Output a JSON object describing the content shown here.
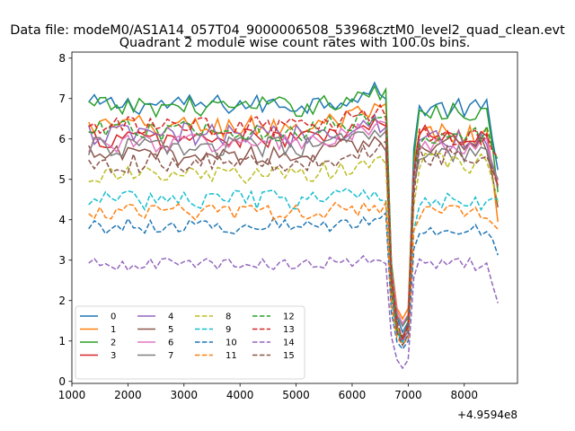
{
  "chart_data": {
    "type": "line",
    "suptitle": "Data file: modeM0/AS1A14_057T04_9000006508_53968cztM0_level2_quad_clean.evt",
    "title": "Quadrant 2 module wise count rates with 100.0s bins.",
    "xlabel": "",
    "ylabel": "",
    "x_offset_label": "+4.9594e8",
    "xlim": [
      1000,
      8950
    ],
    "ylim": [
      -0.05,
      8.15
    ],
    "xticks": [
      1000,
      2000,
      3000,
      4000,
      5000,
      6000,
      7000,
      8000
    ],
    "xtick_labels": [
      "1000",
      "2000",
      "3000",
      "4000",
      "5000",
      "6000",
      "7000",
      "8000"
    ],
    "yticks": [
      0,
      1,
      2,
      3,
      4,
      5,
      6,
      7,
      8
    ],
    "ytick_labels": [
      "0",
      "1",
      "2",
      "3",
      "4",
      "5",
      "6",
      "7",
      "8"
    ],
    "x_start": 1300,
    "x_step": 100,
    "dip_center": 6900,
    "legend": {
      "placement": "lower-left",
      "columns": 4
    },
    "series": [
      {
        "name": "0",
        "color": "#1f77b4",
        "style": "solid",
        "level": 6.85,
        "dip_min": 1.2,
        "late_level": 6.75,
        "late_end": 5.2,
        "noise": 0.25
      },
      {
        "name": "1",
        "color": "#ff7f0e",
        "style": "solid",
        "level": 6.3,
        "dip_min": 1.5,
        "late_level": 6.1,
        "late_end": 4.0,
        "noise": 0.3
      },
      {
        "name": "2",
        "color": "#2ca02c",
        "style": "solid",
        "level": 6.8,
        "dip_min": 1.3,
        "late_level": 6.7,
        "late_end": 4.8,
        "noise": 0.25
      },
      {
        "name": "3",
        "color": "#d62728",
        "style": "solid",
        "level": 6.0,
        "dip_min": 1.1,
        "late_level": 6.1,
        "late_end": 4.8,
        "noise": 0.25
      },
      {
        "name": "4",
        "color": "#9467bd",
        "style": "solid",
        "level": 6.1,
        "dip_min": 1.0,
        "late_level": 6.0,
        "late_end": 5.0,
        "noise": 0.3
      },
      {
        "name": "5",
        "color": "#8c564b",
        "style": "solid",
        "level": 5.6,
        "dip_min": 1.1,
        "late_level": 5.9,
        "late_end": 4.4,
        "noise": 0.25
      },
      {
        "name": "6",
        "color": "#e377c2",
        "style": "solid",
        "level": 5.9,
        "dip_min": 1.4,
        "late_level": 5.8,
        "late_end": 4.9,
        "noise": 0.25
      },
      {
        "name": "7",
        "color": "#7f7f7f",
        "style": "solid",
        "level": 5.8,
        "dip_min": 1.3,
        "late_level": 5.6,
        "late_end": 5.0,
        "noise": 0.25
      },
      {
        "name": "8",
        "color": "#bcbd22",
        "style": "dashed",
        "level": 5.1,
        "dip_min": 1.1,
        "late_level": 5.4,
        "late_end": 4.5,
        "noise": 0.25
      },
      {
        "name": "9",
        "color": "#17becf",
        "style": "dashed",
        "level": 4.5,
        "dip_min": 1.0,
        "late_level": 4.5,
        "late_end": 4.4,
        "noise": 0.25
      },
      {
        "name": "10",
        "color": "#1f77b4",
        "style": "dashed",
        "level": 3.85,
        "dip_min": 0.8,
        "late_level": 3.8,
        "late_end": 3.1,
        "noise": 0.2
      },
      {
        "name": "11",
        "color": "#ff7f0e",
        "style": "dashed",
        "level": 4.2,
        "dip_min": 0.9,
        "late_level": 4.2,
        "late_end": 3.8,
        "noise": 0.2
      },
      {
        "name": "12",
        "color": "#2ca02c",
        "style": "dashed",
        "level": 6.2,
        "dip_min": 1.0,
        "late_level": 6.1,
        "late_end": 5.6,
        "noise": 0.25
      },
      {
        "name": "13",
        "color": "#d62728",
        "style": "dashed",
        "level": 6.3,
        "dip_min": 1.1,
        "late_level": 6.0,
        "late_end": 5.5,
        "noise": 0.25
      },
      {
        "name": "14",
        "color": "#9467bd",
        "style": "dashed",
        "level": 2.9,
        "dip_min": 0.35,
        "late_level": 2.9,
        "late_end": 1.95,
        "noise": 0.15
      },
      {
        "name": "15",
        "color": "#8c564b",
        "style": "dashed",
        "level": 5.4,
        "dip_min": 0.9,
        "late_level": 5.6,
        "late_end": 4.9,
        "noise": 0.25
      }
    ]
  }
}
